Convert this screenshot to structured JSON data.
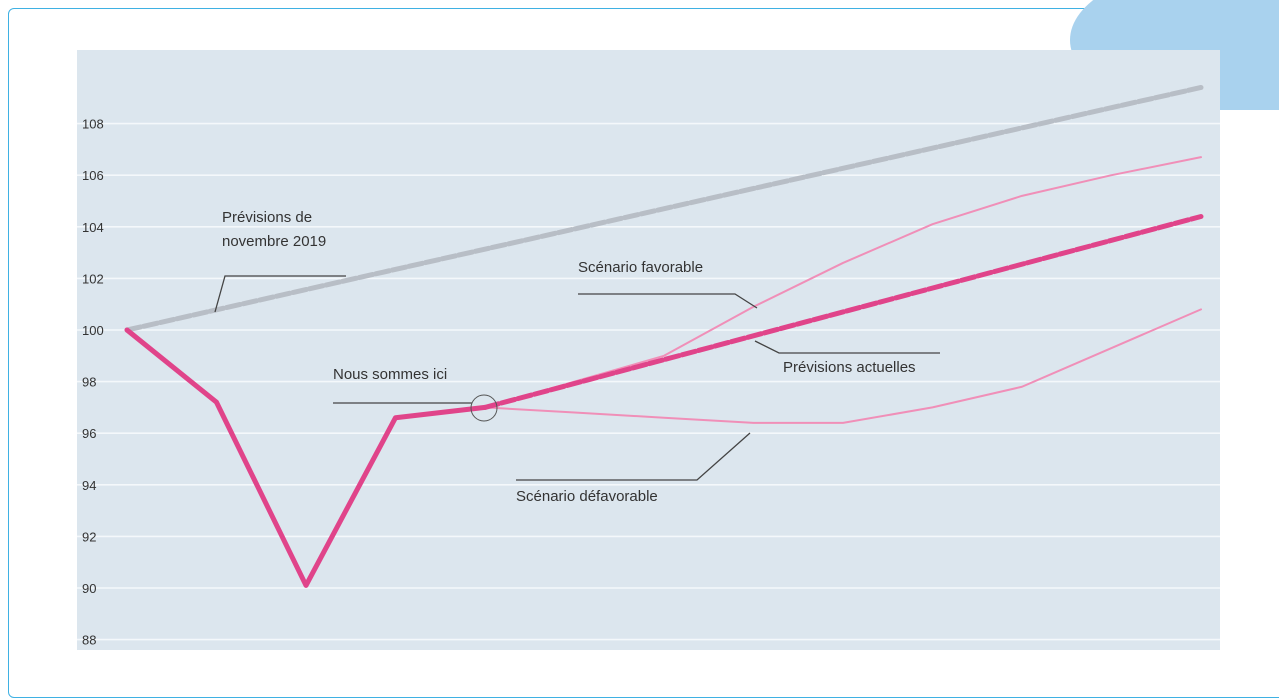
{
  "chart_data": {
    "type": "line",
    "title": "",
    "xlabel": "",
    "ylabel": "",
    "ylim": [
      88,
      109.5
    ],
    "y_ticks": [
      108,
      106,
      104,
      102,
      100,
      98,
      96,
      94,
      92,
      90,
      88
    ],
    "grid": "horizontal",
    "x_points": 13,
    "series": [
      {
        "values": [
          100,
          null,
          null,
          null,
          null,
          null,
          null,
          null,
          null,
          null,
          null,
          null,
          109.4
        ],
        "color": "#b8bec6",
        "style": "dashed-thick"
      },
      {
        "values": [
          100,
          97.2,
          90.1,
          96.6,
          97.0,
          null,
          null,
          null,
          null,
          null,
          null,
          null,
          null
        ],
        "color": "#e0448a",
        "style": "solid-thick"
      },
      {
        "values": [
          null,
          null,
          null,
          null,
          97.0,
          null,
          null,
          null,
          null,
          null,
          null,
          null,
          104.4
        ],
        "color": "#e0448a",
        "style": "dashed-thick"
      },
      {
        "values": [
          null,
          null,
          null,
          null,
          97.0,
          null,
          99.0,
          100.9,
          102.6,
          104.1,
          105.2,
          106.0,
          106.7
        ],
        "color": "#f08fb8",
        "style": "thin"
      },
      {
        "values": [
          null,
          null,
          null,
          null,
          97.0,
          96.8,
          96.6,
          96.4,
          96.4,
          97.0,
          97.8,
          99.3,
          100.8
        ],
        "color": "#f08fb8",
        "style": "thin"
      }
    ],
    "annotations": [
      {
        "label": "Prévisions de",
        "label2": "novembre 2019"
      },
      {
        "label": "Scénario favorable"
      },
      {
        "label": "Prévisions actuelles"
      },
      {
        "label": "Nous sommes ici"
      },
      {
        "label": "Scénario défavorable"
      }
    ]
  },
  "colors": {
    "frame": "#3fb1e3",
    "plot_bg": "#dce6ee",
    "grid": "#f4f8fb",
    "accent_blob": "#a9d2ee"
  }
}
